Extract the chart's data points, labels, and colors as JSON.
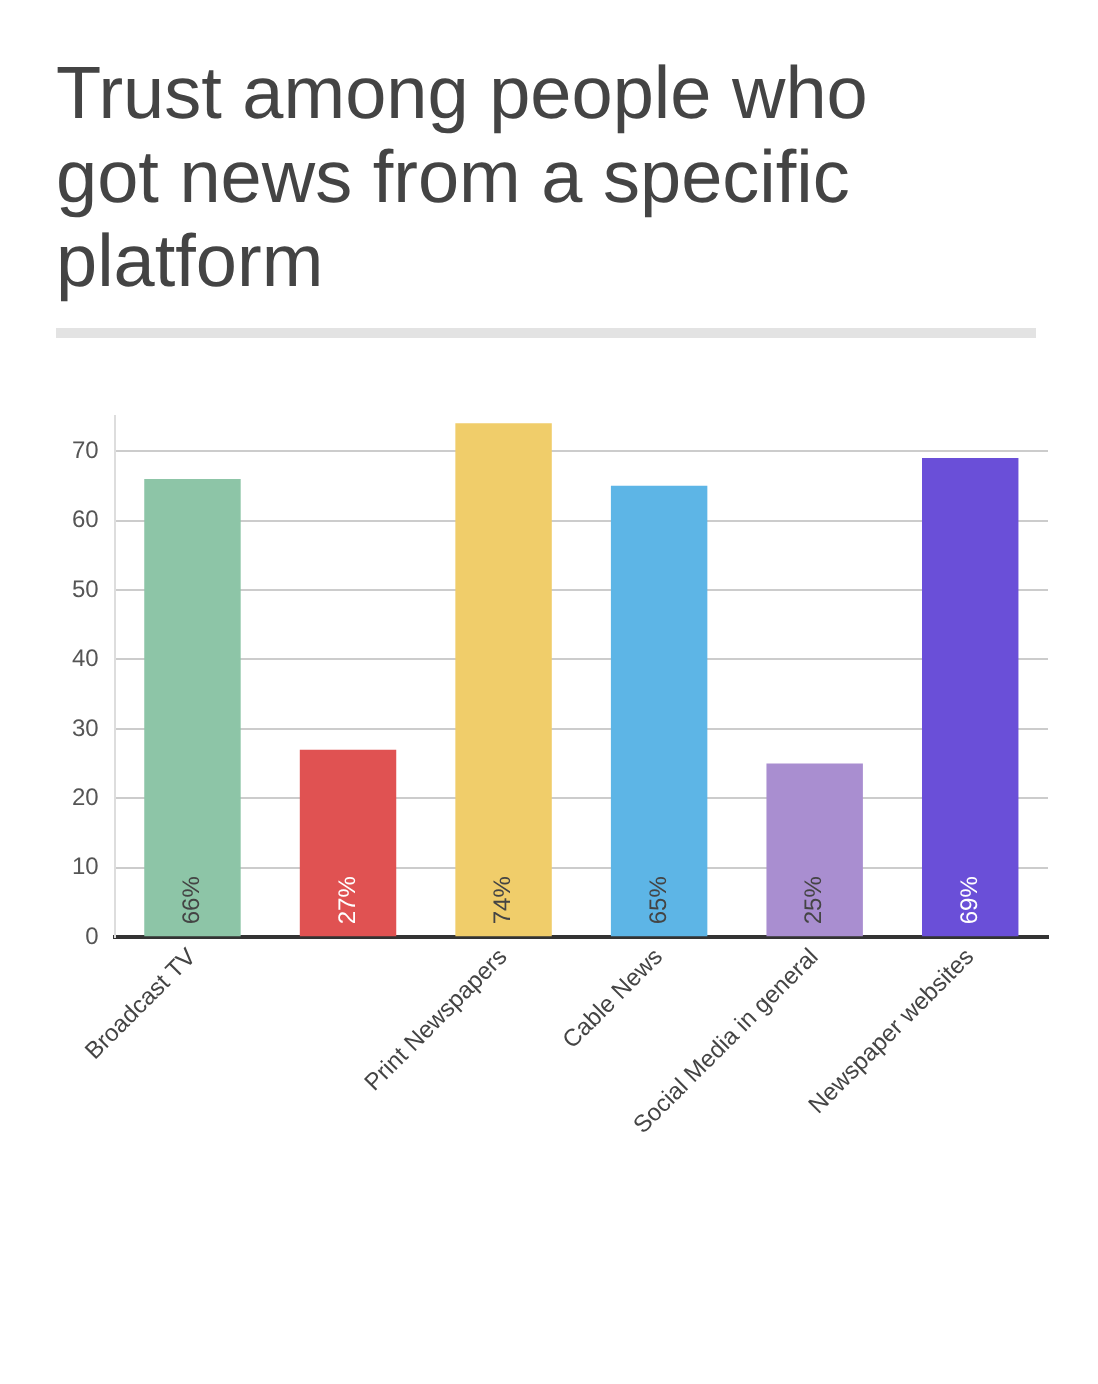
{
  "chart_data": {
    "type": "bar",
    "title": "Trust among people who got news from a specific platform",
    "categories": [
      "Broadcast TV",
      null,
      "Print Newspapers",
      "Cable News",
      "Social Media in general",
      "Newspaper websites"
    ],
    "values": [
      66,
      27,
      74,
      65,
      25,
      69
    ],
    "colors": [
      "#8dc5a7",
      "#e05252",
      "#f0cd6a",
      "#5db5e6",
      "#a98ed0",
      "#6a4fd8"
    ],
    "value_labels": [
      "66%",
      "27%",
      "74%",
      "65%",
      "25%",
      "69%"
    ],
    "ylim": [
      0,
      75
    ],
    "yticks": [
      0,
      10,
      20,
      30,
      40,
      50,
      60,
      70
    ],
    "grid": "y"
  }
}
